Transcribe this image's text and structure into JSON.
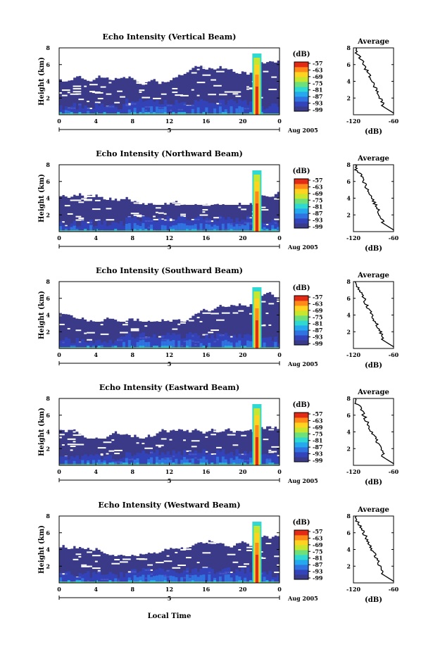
{
  "chart_data": [
    {
      "type": "heatmap",
      "title": "Echo Intensity (Vertical Beam)",
      "ylabel": "Height (km)",
      "x_ticks": [
        "0",
        "4",
        "8",
        "12",
        "16",
        "20",
        "0"
      ],
      "y_ticks": [
        "8",
        "6",
        "4",
        "2"
      ],
      "xlim": [
        0,
        24
      ],
      "ylim": [
        0,
        8
      ],
      "date_label": "5",
      "month_label": "Aug 2005",
      "seed": 11,
      "average_profile": {
        "title": "Average",
        "xlabel": "(dB)",
        "x_ticks": [
          "-120",
          "-60"
        ],
        "y_ticks": [
          "8",
          "6",
          "4",
          "2"
        ],
        "xlim": [
          -120,
          -60
        ],
        "ylim": [
          0,
          8
        ]
      }
    },
    {
      "type": "heatmap",
      "title": "Echo Intensity (Northward Beam)",
      "ylabel": "Height (km)",
      "x_ticks": [
        "0",
        "4",
        "8",
        "12",
        "16",
        "20",
        "0"
      ],
      "y_ticks": [
        "8",
        "6",
        "4",
        "2"
      ],
      "xlim": [
        0,
        24
      ],
      "ylim": [
        0,
        8
      ],
      "date_label": "5",
      "month_label": "Aug 2005",
      "seed": 23,
      "average_profile": {
        "title": "Average",
        "xlabel": "(dB)",
        "x_ticks": [
          "-120",
          "-60"
        ],
        "y_ticks": [
          "8",
          "6",
          "4",
          "2"
        ],
        "xlim": [
          -120,
          -60
        ],
        "ylim": [
          0,
          8
        ]
      }
    },
    {
      "type": "heatmap",
      "title": "Echo Intensity (Southward Beam)",
      "ylabel": "Height (km)",
      "x_ticks": [
        "0",
        "4",
        "8",
        "12",
        "16",
        "20",
        "0"
      ],
      "y_ticks": [
        "8",
        "6",
        "4",
        "2"
      ],
      "xlim": [
        0,
        24
      ],
      "ylim": [
        0,
        8
      ],
      "date_label": "5",
      "month_label": "Aug 2005",
      "seed": 37,
      "average_profile": {
        "title": "Average",
        "xlabel": "(dB)",
        "x_ticks": [
          "-120",
          "-60"
        ],
        "y_ticks": [
          "8",
          "6",
          "4",
          "2"
        ],
        "xlim": [
          -120,
          -60
        ],
        "ylim": [
          0,
          8
        ]
      }
    },
    {
      "type": "heatmap",
      "title": "Echo Intensity (Eastward Beam)",
      "ylabel": "Height (km)",
      "x_ticks": [
        "0",
        "4",
        "8",
        "12",
        "16",
        "20",
        "0"
      ],
      "y_ticks": [
        "8",
        "6",
        "4",
        "2"
      ],
      "xlim": [
        0,
        24
      ],
      "ylim": [
        0,
        8
      ],
      "date_label": "5",
      "month_label": "Aug 2005",
      "seed": 53,
      "average_profile": {
        "title": "Average",
        "xlabel": "(dB)",
        "x_ticks": [
          "-120",
          "-60"
        ],
        "y_ticks": [
          "8",
          "6",
          "4",
          "2"
        ],
        "xlim": [
          -120,
          -60
        ],
        "ylim": [
          0,
          8
        ]
      }
    },
    {
      "type": "heatmap",
      "title": "Echo Intensity (Westward Beam)",
      "ylabel": "Height (km)",
      "x_ticks": [
        "0",
        "4",
        "8",
        "12",
        "16",
        "20",
        "0"
      ],
      "y_ticks": [
        "8",
        "6",
        "4",
        "2"
      ],
      "xlim": [
        0,
        24
      ],
      "ylim": [
        0,
        8
      ],
      "date_label": "5",
      "month_label": "Aug 2005",
      "seed": 71,
      "average_profile": {
        "title": "Average",
        "xlabel": "(dB)",
        "x_ticks": [
          "-120",
          "-60"
        ],
        "y_ticks": [
          "8",
          "6",
          "4",
          "2"
        ],
        "xlim": [
          -120,
          -60
        ],
        "ylim": [
          0,
          8
        ]
      }
    }
  ],
  "colorbar": {
    "unit_label": "(dB)",
    "tick_labels": [
      "-57",
      "-63",
      "-69",
      "-75",
      "-81",
      "-87",
      "-93",
      "-99"
    ],
    "range": [
      -102,
      -54
    ],
    "colors": [
      "#3a3a8a",
      "#3344bb",
      "#2f72e0",
      "#25a8ee",
      "#2fd8d0",
      "#6de07a",
      "#c8e62e",
      "#ffd31f",
      "#ff8a1a",
      "#e22a14"
    ]
  },
  "common": {
    "xlabel": "Local Time",
    "background_color": "#3a3a88",
    "missing_color": "#ffffff"
  }
}
